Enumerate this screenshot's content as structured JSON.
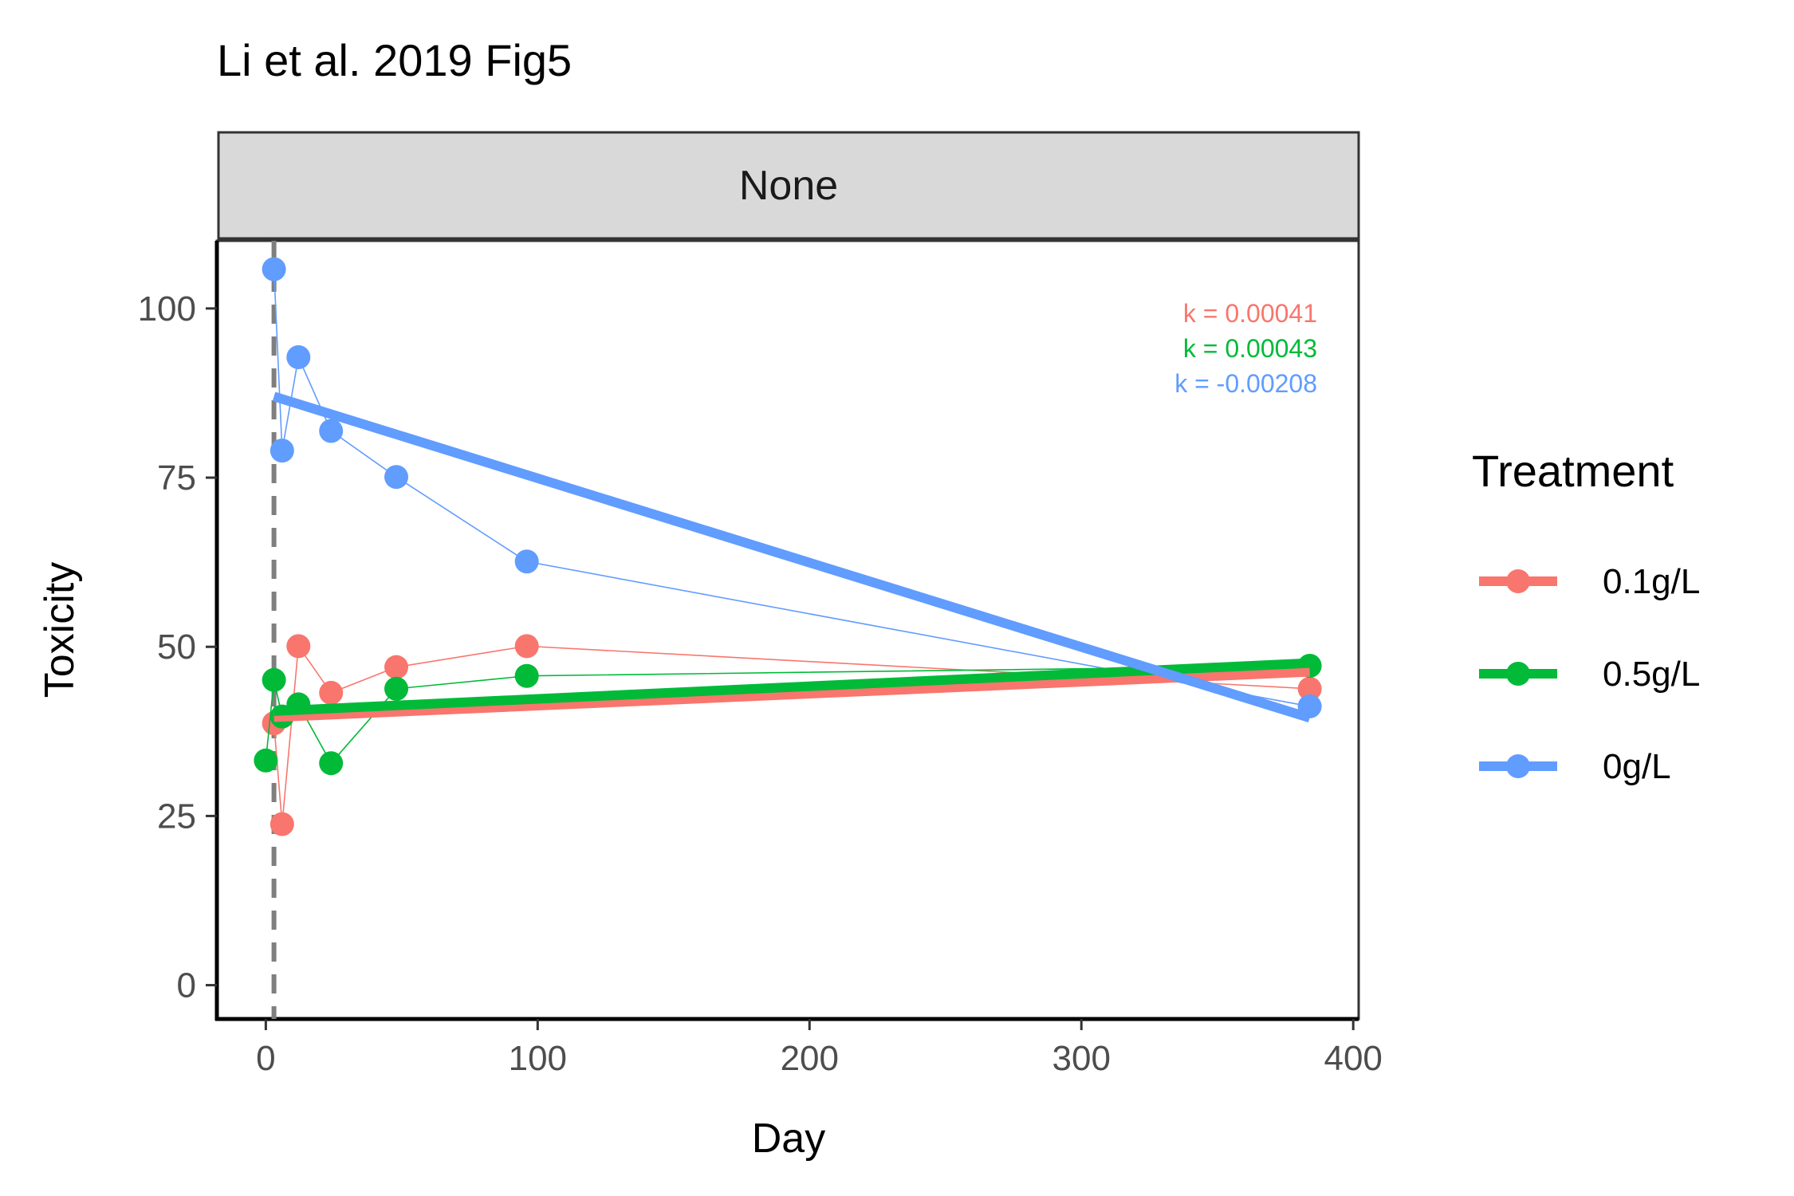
{
  "chart_data": {
    "type": "line",
    "title": "Li et al. 2019 Fig5",
    "facet_label": "None",
    "xlabel": "Day",
    "ylabel": "Toxicity",
    "xlim": [
      -18,
      402
    ],
    "ylim": [
      -5,
      110
    ],
    "xticks": [
      0,
      100,
      200,
      300,
      400
    ],
    "yticks": [
      0,
      25,
      50,
      75,
      100
    ],
    "vline_x": 3,
    "grid": false,
    "legend": {
      "title": "Treatment",
      "position": "right"
    },
    "series": [
      {
        "name": "0.1g/L",
        "color": "#F8766D",
        "points": [
          {
            "x": 3,
            "y": 38.7
          },
          {
            "x": 6,
            "y": 23.8
          },
          {
            "x": 12,
            "y": 50.1
          },
          {
            "x": 24,
            "y": 43.2
          },
          {
            "x": 48,
            "y": 47.0
          },
          {
            "x": 96,
            "y": 50.1
          },
          {
            "x": 384,
            "y": 43.8
          }
        ],
        "fit": {
          "x0": 3,
          "y0": 39.6,
          "x1": 384,
          "y1": 46.3
        },
        "k_label": "k = 0.00041"
      },
      {
        "name": "0.5g/L",
        "color": "#00BA38",
        "points": [
          {
            "x": 0,
            "y": 33.2
          },
          {
            "x": 3,
            "y": 45.1
          },
          {
            "x": 6,
            "y": 39.7
          },
          {
            "x": 12,
            "y": 41.5
          },
          {
            "x": 24,
            "y": 32.8
          },
          {
            "x": 48,
            "y": 43.8
          },
          {
            "x": 96,
            "y": 45.7
          },
          {
            "x": 384,
            "y": 47.2
          }
        ],
        "fit": {
          "x0": 3,
          "y0": 40.5,
          "x1": 384,
          "y1": 47.6
        },
        "k_label": "k = 0.00043"
      },
      {
        "name": "0g/L",
        "color": "#619CFF",
        "points": [
          {
            "x": 3,
            "y": 105.8
          },
          {
            "x": 6,
            "y": 79.0
          },
          {
            "x": 12,
            "y": 92.8
          },
          {
            "x": 24,
            "y": 81.9
          },
          {
            "x": 48,
            "y": 75.1
          },
          {
            "x": 96,
            "y": 62.6
          },
          {
            "x": 384,
            "y": 41.2
          }
        ],
        "fit": {
          "x0": 3,
          "y0": 87.0,
          "x1": 384,
          "y1": 39.5
        },
        "k_label": "k = -0.00208"
      }
    ]
  }
}
